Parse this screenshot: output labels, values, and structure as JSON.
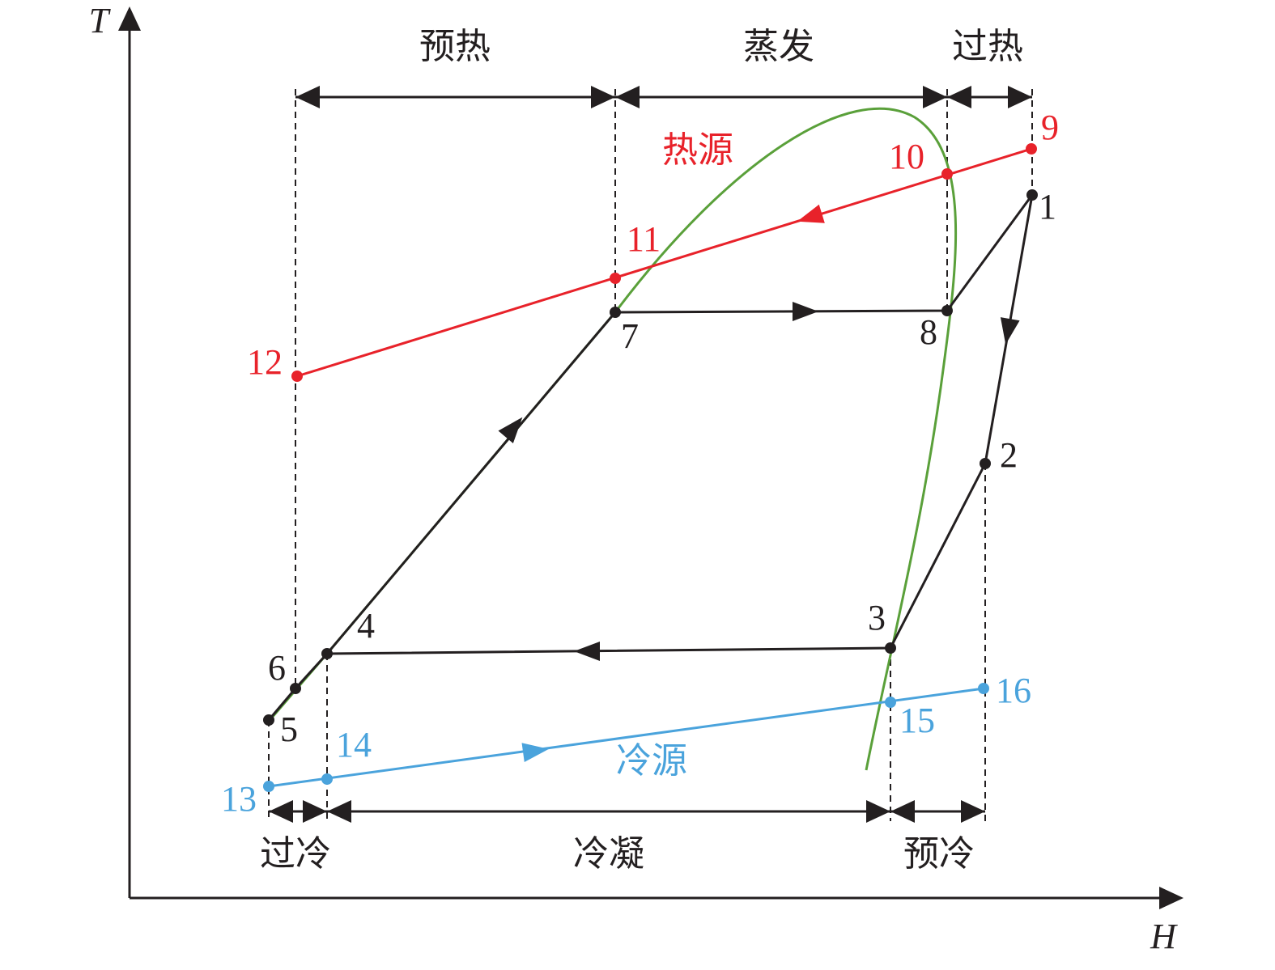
{
  "axes": {
    "y_label": "T",
    "x_label": "H"
  },
  "regions": {
    "top": [
      "预热",
      "蒸发",
      "过热"
    ],
    "bottom": [
      "过冷",
      "冷凝",
      "预冷"
    ]
  },
  "streams": {
    "hot": "热源",
    "cold": "冷源"
  },
  "points": [
    "1",
    "2",
    "3",
    "4",
    "5",
    "6",
    "7",
    "8",
    "9",
    "10",
    "11",
    "12",
    "13",
    "14",
    "15",
    "16"
  ]
}
